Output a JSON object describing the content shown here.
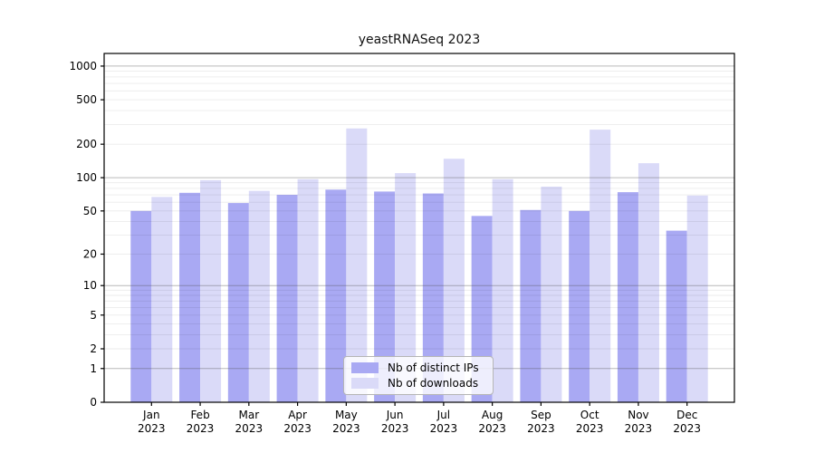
{
  "chart_data": {
    "type": "bar",
    "title": "yeastRNASeq 2023",
    "year": "2023",
    "categories": [
      "Jan 2023",
      "Feb 2023",
      "Mar 2023",
      "Apr 2023",
      "May 2023",
      "Jun 2023",
      "Jul 2023",
      "Aug 2023",
      "Sep 2023",
      "Oct 2023",
      "Nov 2023",
      "Dec 2023"
    ],
    "month_labels": [
      "Jan",
      "Feb",
      "Mar",
      "Apr",
      "May",
      "Jun",
      "Jul",
      "Aug",
      "Sep",
      "Oct",
      "Nov",
      "Dec"
    ],
    "series": [
      {
        "name": "Nb of distinct IPs",
        "color": "#a9a9f3",
        "values": [
          50,
          73,
          59,
          70,
          78,
          75,
          72,
          45,
          51,
          50,
          74,
          33
        ]
      },
      {
        "name": "Nb of downloads",
        "color": "#dadaf8",
        "values": [
          67,
          95,
          76,
          97,
          277,
          110,
          148,
          97,
          83,
          270,
          135,
          69
        ]
      }
    ],
    "y_axis": {
      "scale": "log1p",
      "ticks": [
        0,
        1,
        2,
        5,
        10,
        20,
        50,
        100,
        200,
        500,
        1000
      ],
      "major_gridlines": [
        1,
        10,
        100,
        1000
      ],
      "ylim": [
        0,
        1300
      ]
    },
    "legend": {
      "position": "bottom-center",
      "entries": [
        "Nb of distinct IPs",
        "Nb of downloads"
      ]
    },
    "grid": true,
    "xlabel": "",
    "ylabel": ""
  },
  "style": {
    "background": "#ffffff",
    "major_grid_color": "rgba(80,80,80,0.40)",
    "minor_grid_color": "rgba(0,0,0,0.08)",
    "axis_color": "#000000",
    "legend_border": "#b5b5b5"
  }
}
